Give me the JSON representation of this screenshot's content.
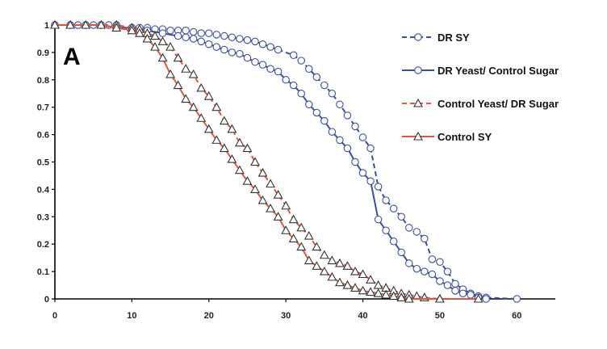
{
  "panel_label": "A",
  "colors": {
    "blue": "#3a4fa3",
    "red": "#e0553f",
    "axis": "#000000"
  },
  "chart_data": {
    "type": "line",
    "title": "",
    "xlabel": "",
    "ylabel": "",
    "xlim": [
      0,
      65
    ],
    "ylim": [
      0,
      1
    ],
    "x_ticks": [
      0,
      10,
      20,
      30,
      40,
      50,
      60
    ],
    "y_ticks": [
      0,
      0.1,
      0.2,
      0.3,
      0.4,
      0.5,
      0.6,
      0.7,
      0.8,
      0.9,
      1
    ],
    "y_tick_labels": [
      "0",
      "0.1",
      "0.2",
      "0.3",
      "0.4",
      "0.5",
      "0.6",
      "0.7",
      "0.8",
      "0.9",
      "1"
    ],
    "legend_position": "top-right",
    "series": [
      {
        "name": "DR SY",
        "color": "blue",
        "line_style": "dashed",
        "marker": "circle",
        "points": [
          [
            0,
            1
          ],
          [
            2,
            1
          ],
          [
            3,
            1
          ],
          [
            4,
            1
          ],
          [
            5,
            1
          ],
          [
            6,
            1
          ],
          [
            7,
            1
          ],
          [
            8,
            1
          ],
          [
            10,
            0.99
          ],
          [
            11,
            0.99
          ],
          [
            12,
            0.99
          ],
          [
            13,
            0.985
          ],
          [
            14,
            0.985
          ],
          [
            15,
            0.98
          ],
          [
            16,
            0.98
          ],
          [
            17,
            0.98
          ],
          [
            18,
            0.975
          ],
          [
            19,
            0.97
          ],
          [
            20,
            0.97
          ],
          [
            21,
            0.965
          ],
          [
            22,
            0.96
          ],
          [
            23,
            0.955
          ],
          [
            24,
            0.95
          ],
          [
            25,
            0.945
          ],
          [
            26,
            0.94
          ],
          [
            27,
            0.93
          ],
          [
            28,
            0.92
          ],
          [
            29,
            0.91
          ],
          [
            31,
            0.89
          ],
          [
            32,
            0.87
          ],
          [
            33,
            0.84
          ],
          [
            34,
            0.81
          ],
          [
            35,
            0.78
          ],
          [
            36,
            0.75
          ],
          [
            37,
            0.71
          ],
          [
            38,
            0.67
          ],
          [
            39,
            0.63
          ],
          [
            40,
            0.59
          ],
          [
            41,
            0.55
          ],
          [
            42,
            0.41
          ],
          [
            43,
            0.36
          ],
          [
            44,
            0.33
          ],
          [
            45,
            0.3
          ],
          [
            46,
            0.26
          ],
          [
            47,
            0.245
          ],
          [
            48,
            0.22
          ],
          [
            49,
            0.145
          ],
          [
            50,
            0.135
          ],
          [
            51,
            0.1
          ],
          [
            52,
            0.055
          ],
          [
            53,
            0.035
          ],
          [
            54,
            0.02
          ],
          [
            55,
            0.01
          ],
          [
            56,
            0.005
          ],
          [
            60,
            0
          ]
        ]
      },
      {
        "name": "DR Yeast/ Control Sugar",
        "color": "blue",
        "line_style": "solid",
        "marker": "circle",
        "points": [
          [
            0,
            1
          ],
          [
            2,
            1
          ],
          [
            4,
            1
          ],
          [
            6,
            1
          ],
          [
            8,
            0.99
          ],
          [
            10,
            0.99
          ],
          [
            12,
            0.98
          ],
          [
            14,
            0.97
          ],
          [
            16,
            0.96
          ],
          [
            17,
            0.955
          ],
          [
            18,
            0.95
          ],
          [
            19,
            0.94
          ],
          [
            20,
            0.93
          ],
          [
            21,
            0.92
          ],
          [
            22,
            0.91
          ],
          [
            23,
            0.9
          ],
          [
            24,
            0.895
          ],
          [
            25,
            0.88
          ],
          [
            26,
            0.865
          ],
          [
            27,
            0.855
          ],
          [
            28,
            0.84
          ],
          [
            29,
            0.83
          ],
          [
            30,
            0.8
          ],
          [
            31,
            0.78
          ],
          [
            32,
            0.75
          ],
          [
            33,
            0.71
          ],
          [
            34,
            0.68
          ],
          [
            35,
            0.65
          ],
          [
            36,
            0.61
          ],
          [
            37,
            0.58
          ],
          [
            38,
            0.55
          ],
          [
            39,
            0.5
          ],
          [
            40,
            0.46
          ],
          [
            41,
            0.43
          ],
          [
            42,
            0.29
          ],
          [
            43,
            0.25
          ],
          [
            44,
            0.21
          ],
          [
            45,
            0.17
          ],
          [
            46,
            0.13
          ],
          [
            47,
            0.11
          ],
          [
            48,
            0.1
          ],
          [
            49,
            0.09
          ],
          [
            50,
            0.065
          ],
          [
            51,
            0.05
          ],
          [
            52,
            0.03
          ],
          [
            53,
            0.02
          ],
          [
            54,
            0.015
          ],
          [
            55,
            0.005
          ],
          [
            56,
            0
          ]
        ]
      },
      {
        "name": "Control Yeast/ DR Sugar",
        "color": "red",
        "line_style": "dashed",
        "marker": "triangle",
        "points": [
          [
            0,
            1
          ],
          [
            2,
            1
          ],
          [
            4,
            1
          ],
          [
            6,
            1
          ],
          [
            8,
            1
          ],
          [
            10,
            0.99
          ],
          [
            11,
            0.985
          ],
          [
            12,
            0.97
          ],
          [
            13,
            0.96
          ],
          [
            14,
            0.94
          ],
          [
            15,
            0.92
          ],
          [
            16,
            0.88
          ],
          [
            17,
            0.84
          ],
          [
            18,
            0.82
          ],
          [
            19,
            0.77
          ],
          [
            20,
            0.74
          ],
          [
            21,
            0.7
          ],
          [
            22,
            0.65
          ],
          [
            23,
            0.62
          ],
          [
            24,
            0.57
          ],
          [
            25,
            0.55
          ],
          [
            26,
            0.5
          ],
          [
            27,
            0.46
          ],
          [
            28,
            0.42
          ],
          [
            29,
            0.38
          ],
          [
            30,
            0.34
          ],
          [
            31,
            0.29
          ],
          [
            32,
            0.26
          ],
          [
            33,
            0.23
          ],
          [
            34,
            0.19
          ],
          [
            35,
            0.16
          ],
          [
            36,
            0.14
          ],
          [
            37,
            0.13
          ],
          [
            38,
            0.12
          ],
          [
            39,
            0.1
          ],
          [
            40,
            0.09
          ],
          [
            41,
            0.07
          ],
          [
            42,
            0.05
          ],
          [
            43,
            0.04
          ],
          [
            44,
            0.03
          ],
          [
            45,
            0.02
          ],
          [
            46,
            0.015
          ],
          [
            47,
            0.01
          ],
          [
            48,
            0.005
          ],
          [
            50,
            0
          ]
        ]
      },
      {
        "name": "Control SY",
        "color": "red",
        "line_style": "solid",
        "marker": "triangle",
        "points": [
          [
            0,
            1
          ],
          [
            2,
            1
          ],
          [
            4,
            1
          ],
          [
            6,
            1
          ],
          [
            8,
            0.99
          ],
          [
            10,
            0.98
          ],
          [
            11,
            0.97
          ],
          [
            12,
            0.95
          ],
          [
            13,
            0.92
          ],
          [
            14,
            0.88
          ],
          [
            15,
            0.82
          ],
          [
            16,
            0.78
          ],
          [
            17,
            0.73
          ],
          [
            18,
            0.7
          ],
          [
            19,
            0.66
          ],
          [
            20,
            0.62
          ],
          [
            21,
            0.58
          ],
          [
            22,
            0.55
          ],
          [
            23,
            0.51
          ],
          [
            24,
            0.47
          ],
          [
            25,
            0.43
          ],
          [
            26,
            0.4
          ],
          [
            27,
            0.36
          ],
          [
            28,
            0.33
          ],
          [
            29,
            0.3
          ],
          [
            30,
            0.25
          ],
          [
            31,
            0.22
          ],
          [
            32,
            0.19
          ],
          [
            33,
            0.14
          ],
          [
            34,
            0.12
          ],
          [
            35,
            0.1
          ],
          [
            36,
            0.08
          ],
          [
            37,
            0.06
          ],
          [
            38,
            0.05
          ],
          [
            39,
            0.04
          ],
          [
            40,
            0.03
          ],
          [
            41,
            0.025
          ],
          [
            42,
            0.02
          ],
          [
            43,
            0.015
          ],
          [
            44,
            0.01
          ],
          [
            45,
            0.005
          ],
          [
            46,
            0
          ],
          [
            50,
            0
          ],
          [
            55,
            0
          ]
        ]
      }
    ]
  }
}
